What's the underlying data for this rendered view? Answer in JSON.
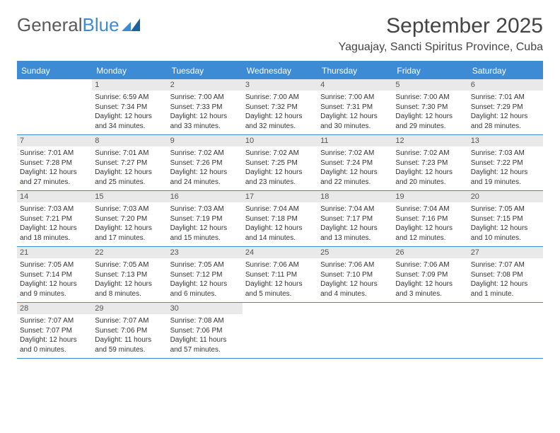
{
  "logo": {
    "word1": "General",
    "word2": "Blue"
  },
  "title": "September 2025",
  "location": "Yaguajay, Sancti Spiritus Province, Cuba",
  "weekdays": [
    "Sunday",
    "Monday",
    "Tuesday",
    "Wednesday",
    "Thursday",
    "Friday",
    "Saturday"
  ],
  "colors": {
    "accent": "#3d8bd4",
    "daynum_bg": "#e9e9e9",
    "text": "#333333",
    "title_text": "#444444",
    "background": "#ffffff"
  },
  "font": {
    "family": "Arial",
    "title_size": 30,
    "location_size": 16,
    "weekday_size": 12,
    "body_size": 10
  },
  "layout": {
    "columns": 7,
    "rows": 5,
    "start_offset": 1
  },
  "days": [
    {
      "n": "1",
      "sr": "Sunrise: 6:59 AM",
      "ss": "Sunset: 7:34 PM",
      "d1": "Daylight: 12 hours",
      "d2": "and 34 minutes."
    },
    {
      "n": "2",
      "sr": "Sunrise: 7:00 AM",
      "ss": "Sunset: 7:33 PM",
      "d1": "Daylight: 12 hours",
      "d2": "and 33 minutes."
    },
    {
      "n": "3",
      "sr": "Sunrise: 7:00 AM",
      "ss": "Sunset: 7:32 PM",
      "d1": "Daylight: 12 hours",
      "d2": "and 32 minutes."
    },
    {
      "n": "4",
      "sr": "Sunrise: 7:00 AM",
      "ss": "Sunset: 7:31 PM",
      "d1": "Daylight: 12 hours",
      "d2": "and 30 minutes."
    },
    {
      "n": "5",
      "sr": "Sunrise: 7:00 AM",
      "ss": "Sunset: 7:30 PM",
      "d1": "Daylight: 12 hours",
      "d2": "and 29 minutes."
    },
    {
      "n": "6",
      "sr": "Sunrise: 7:01 AM",
      "ss": "Sunset: 7:29 PM",
      "d1": "Daylight: 12 hours",
      "d2": "and 28 minutes."
    },
    {
      "n": "7",
      "sr": "Sunrise: 7:01 AM",
      "ss": "Sunset: 7:28 PM",
      "d1": "Daylight: 12 hours",
      "d2": "and 27 minutes."
    },
    {
      "n": "8",
      "sr": "Sunrise: 7:01 AM",
      "ss": "Sunset: 7:27 PM",
      "d1": "Daylight: 12 hours",
      "d2": "and 25 minutes."
    },
    {
      "n": "9",
      "sr": "Sunrise: 7:02 AM",
      "ss": "Sunset: 7:26 PM",
      "d1": "Daylight: 12 hours",
      "d2": "and 24 minutes."
    },
    {
      "n": "10",
      "sr": "Sunrise: 7:02 AM",
      "ss": "Sunset: 7:25 PM",
      "d1": "Daylight: 12 hours",
      "d2": "and 23 minutes."
    },
    {
      "n": "11",
      "sr": "Sunrise: 7:02 AM",
      "ss": "Sunset: 7:24 PM",
      "d1": "Daylight: 12 hours",
      "d2": "and 22 minutes."
    },
    {
      "n": "12",
      "sr": "Sunrise: 7:02 AM",
      "ss": "Sunset: 7:23 PM",
      "d1": "Daylight: 12 hours",
      "d2": "and 20 minutes."
    },
    {
      "n": "13",
      "sr": "Sunrise: 7:03 AM",
      "ss": "Sunset: 7:22 PM",
      "d1": "Daylight: 12 hours",
      "d2": "and 19 minutes."
    },
    {
      "n": "14",
      "sr": "Sunrise: 7:03 AM",
      "ss": "Sunset: 7:21 PM",
      "d1": "Daylight: 12 hours",
      "d2": "and 18 minutes."
    },
    {
      "n": "15",
      "sr": "Sunrise: 7:03 AM",
      "ss": "Sunset: 7:20 PM",
      "d1": "Daylight: 12 hours",
      "d2": "and 17 minutes."
    },
    {
      "n": "16",
      "sr": "Sunrise: 7:03 AM",
      "ss": "Sunset: 7:19 PM",
      "d1": "Daylight: 12 hours",
      "d2": "and 15 minutes."
    },
    {
      "n": "17",
      "sr": "Sunrise: 7:04 AM",
      "ss": "Sunset: 7:18 PM",
      "d1": "Daylight: 12 hours",
      "d2": "and 14 minutes."
    },
    {
      "n": "18",
      "sr": "Sunrise: 7:04 AM",
      "ss": "Sunset: 7:17 PM",
      "d1": "Daylight: 12 hours",
      "d2": "and 13 minutes."
    },
    {
      "n": "19",
      "sr": "Sunrise: 7:04 AM",
      "ss": "Sunset: 7:16 PM",
      "d1": "Daylight: 12 hours",
      "d2": "and 12 minutes."
    },
    {
      "n": "20",
      "sr": "Sunrise: 7:05 AM",
      "ss": "Sunset: 7:15 PM",
      "d1": "Daylight: 12 hours",
      "d2": "and 10 minutes."
    },
    {
      "n": "21",
      "sr": "Sunrise: 7:05 AM",
      "ss": "Sunset: 7:14 PM",
      "d1": "Daylight: 12 hours",
      "d2": "and 9 minutes."
    },
    {
      "n": "22",
      "sr": "Sunrise: 7:05 AM",
      "ss": "Sunset: 7:13 PM",
      "d1": "Daylight: 12 hours",
      "d2": "and 8 minutes."
    },
    {
      "n": "23",
      "sr": "Sunrise: 7:05 AM",
      "ss": "Sunset: 7:12 PM",
      "d1": "Daylight: 12 hours",
      "d2": "and 6 minutes."
    },
    {
      "n": "24",
      "sr": "Sunrise: 7:06 AM",
      "ss": "Sunset: 7:11 PM",
      "d1": "Daylight: 12 hours",
      "d2": "and 5 minutes."
    },
    {
      "n": "25",
      "sr": "Sunrise: 7:06 AM",
      "ss": "Sunset: 7:10 PM",
      "d1": "Daylight: 12 hours",
      "d2": "and 4 minutes."
    },
    {
      "n": "26",
      "sr": "Sunrise: 7:06 AM",
      "ss": "Sunset: 7:09 PM",
      "d1": "Daylight: 12 hours",
      "d2": "and 3 minutes."
    },
    {
      "n": "27",
      "sr": "Sunrise: 7:07 AM",
      "ss": "Sunset: 7:08 PM",
      "d1": "Daylight: 12 hours",
      "d2": "and 1 minute."
    },
    {
      "n": "28",
      "sr": "Sunrise: 7:07 AM",
      "ss": "Sunset: 7:07 PM",
      "d1": "Daylight: 12 hours",
      "d2": "and 0 minutes."
    },
    {
      "n": "29",
      "sr": "Sunrise: 7:07 AM",
      "ss": "Sunset: 7:06 PM",
      "d1": "Daylight: 11 hours",
      "d2": "and 59 minutes."
    },
    {
      "n": "30",
      "sr": "Sunrise: 7:08 AM",
      "ss": "Sunset: 7:06 PM",
      "d1": "Daylight: 11 hours",
      "d2": "and 57 minutes."
    }
  ]
}
